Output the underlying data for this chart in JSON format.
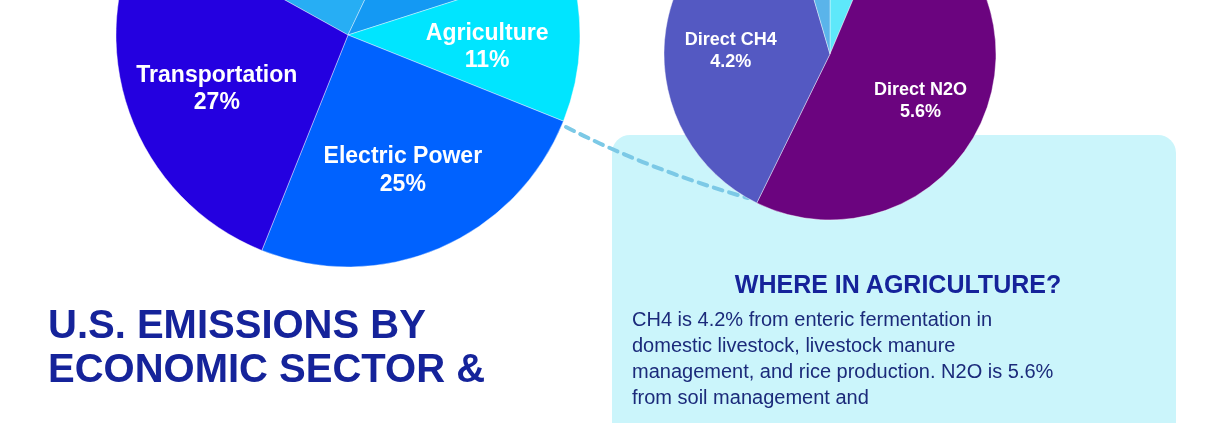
{
  "chart_data": [
    {
      "type": "pie",
      "title": "U.S. EMISSIONS BY ECONOMIC SECTOR &",
      "categories": [
        null,
        null,
        "Agriculture",
        "Electric Power",
        "Transportation"
      ],
      "values": [
        24,
        13,
        11,
        25,
        27
      ],
      "value_labels": [
        null,
        null,
        "11%",
        "25%",
        "27%"
      ],
      "colors": [
        "#27aef4",
        "#1499f3",
        "#00e5ff",
        "#0062ff",
        "#2400e0"
      ]
    },
    {
      "type": "pie",
      "title": "WHERE IN AGRICULTURE?",
      "annotations": [
        "CH4 is 4.2% from enteric fermentation in domestic livestock, livestock manure management, and rice production. N2O is 5.6% from soil management and"
      ],
      "categories": [
        null,
        "Direct N2O",
        "Direct CH4",
        null
      ],
      "values": [
        0.7,
        5.6,
        4.2,
        0.5
      ],
      "value_labels": [
        null,
        "5.6%",
        "4.2%",
        null
      ],
      "colors": [
        "#5ee8fa",
        "#6b047f",
        "#5459c2",
        "#5ab4ea"
      ]
    }
  ]
}
